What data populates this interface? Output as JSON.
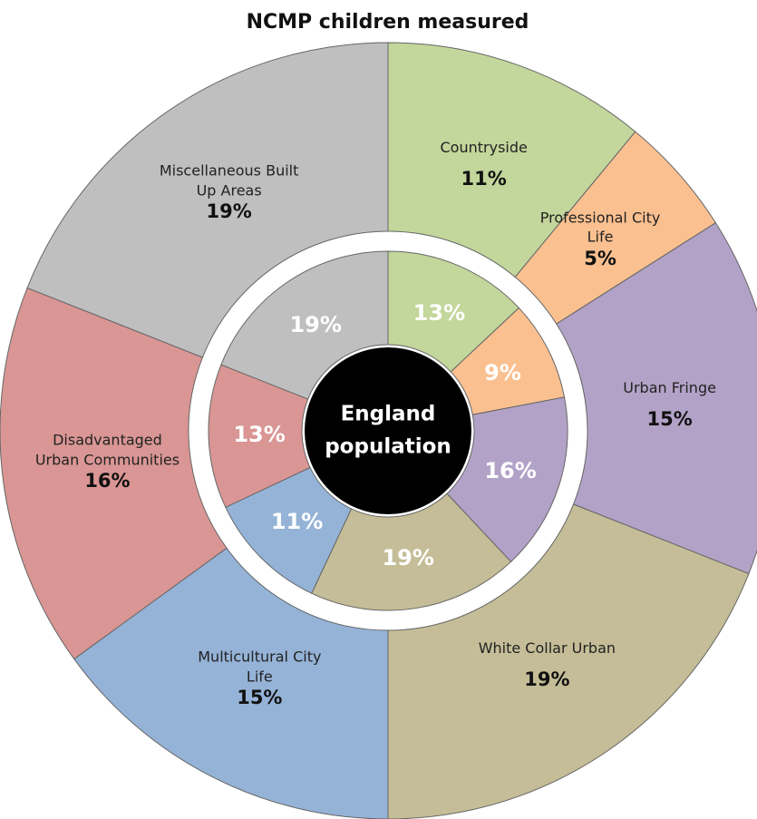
{
  "chart_data": {
    "type": "donut",
    "title": "NCMP children measured",
    "center_label": "England population",
    "categories": [
      "Countryside",
      "Professional City Life",
      "Urban Fringe",
      "White Collar Urban",
      "Multicultural City Life",
      "Disadvantaged Urban Communities",
      "Miscellaneous Built Up Areas"
    ],
    "colors": [
      "#c3d69b",
      "#fac090",
      "#b3a2c7",
      "#c4bd97",
      "#95b3d7",
      "#d99694",
      "#bfbfbf"
    ],
    "series": [
      {
        "values": [
          11,
          5,
          15,
          19,
          15,
          16,
          19
        ],
        "value_labels": [
          "11%",
          "5%",
          "15%",
          "19%",
          "15%",
          "16%",
          "19%"
        ]
      },
      {
        "values": [
          13,
          9,
          16,
          19,
          11,
          13,
          19
        ],
        "value_labels": [
          "13%",
          "9%",
          "16%",
          "19%",
          "11%",
          "13%",
          "19%"
        ]
      }
    ]
  }
}
